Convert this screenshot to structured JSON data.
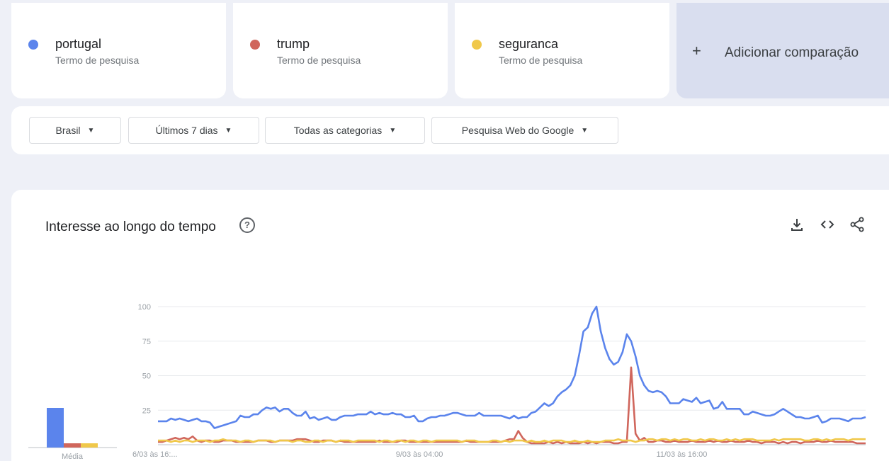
{
  "terms": [
    {
      "name": "portugal",
      "sub": "Termo de pesquisa",
      "color": "#5b84ec"
    },
    {
      "name": "trump",
      "sub": "Termo de pesquisa",
      "color": "#d0665c"
    },
    {
      "name": "seguranca",
      "sub": "Termo de pesquisa",
      "color": "#f0c84a"
    }
  ],
  "add_comparison": {
    "icon": "+",
    "label": "Adicionar comparação"
  },
  "filters": {
    "region": "Brasil",
    "period": "Últimos 7 dias",
    "category": "Todas as categorias",
    "search_type": "Pesquisa Web do Google"
  },
  "panel": {
    "title": "Interesse ao longo do tempo",
    "help_icon": "?",
    "download_icon": "download-icon",
    "embed_icon": "embed-icon",
    "share_icon": "share-icon"
  },
  "chart_data": {
    "type": "line",
    "yticks": [
      25,
      50,
      75,
      100
    ],
    "ylim": [
      0,
      100
    ],
    "x_labels": [
      "6/03 às 16:...",
      "9/03 às 04:00",
      "11/03 às 16:00"
    ],
    "x_label_indices": [
      0,
      60,
      120
    ],
    "average": {
      "label": "Média",
      "values": [
        28,
        3,
        3
      ]
    },
    "series": [
      {
        "name": "portugal",
        "color": "#5b84ec",
        "values": [
          17,
          17,
          17,
          19,
          18,
          19,
          18,
          17,
          18,
          19,
          17,
          17,
          16,
          12,
          13,
          14,
          15,
          16,
          17,
          21,
          20,
          20,
          22,
          22,
          25,
          27,
          26,
          27,
          24,
          26,
          26,
          23,
          21,
          21,
          24,
          19,
          20,
          18,
          19,
          20,
          18,
          18,
          20,
          21,
          21,
          21,
          22,
          22,
          22,
          24,
          22,
          23,
          22,
          22,
          23,
          22,
          22,
          20,
          20,
          21,
          17,
          17,
          19,
          20,
          20,
          21,
          21,
          22,
          23,
          23,
          22,
          21,
          21,
          21,
          23,
          21,
          21,
          21,
          21,
          21,
          20,
          19,
          21,
          19,
          20,
          20,
          23,
          24,
          27,
          30,
          28,
          30,
          35,
          38,
          40,
          43,
          50,
          65,
          82,
          85,
          95,
          100,
          82,
          70,
          62,
          58,
          60,
          67,
          80,
          75,
          64,
          50,
          43,
          39,
          38,
          39,
          38,
          35,
          30,
          30,
          30,
          33,
          32,
          31,
          34,
          30,
          31,
          32,
          26,
          27,
          31,
          26,
          26,
          26,
          26,
          22,
          22,
          24,
          23,
          22,
          21,
          21,
          22,
          24,
          26,
          24,
          22,
          20,
          20,
          19,
          19,
          20,
          21,
          16,
          17,
          19,
          19,
          19,
          18,
          17,
          19,
          19,
          19,
          20
        ]
      },
      {
        "name": "trump",
        "color": "#d0665c",
        "values": [
          2,
          2,
          3,
          4,
          5,
          4,
          5,
          4,
          6,
          3,
          2,
          3,
          3,
          2,
          2,
          3,
          3,
          3,
          2,
          2,
          2,
          2,
          2,
          3,
          3,
          3,
          2,
          2,
          3,
          3,
          3,
          3,
          4,
          4,
          4,
          3,
          2,
          2,
          3,
          3,
          3,
          2,
          3,
          2,
          2,
          2,
          2,
          2,
          2,
          2,
          2,
          3,
          2,
          2,
          2,
          2,
          3,
          3,
          2,
          2,
          2,
          2,
          2,
          2,
          2,
          2,
          2,
          2,
          2,
          2,
          2,
          3,
          2,
          2,
          2,
          2,
          2,
          2,
          2,
          2,
          3,
          4,
          4,
          10,
          5,
          2,
          1,
          1,
          1,
          1,
          2,
          1,
          2,
          1,
          2,
          1,
          1,
          1,
          2,
          1,
          2,
          1,
          2,
          2,
          2,
          1,
          1,
          2,
          2,
          56,
          8,
          3,
          5,
          2,
          2,
          3,
          3,
          2,
          2,
          3,
          2,
          2,
          2,
          3,
          2,
          2,
          2,
          3,
          2,
          3,
          2,
          2,
          3,
          2,
          2,
          2,
          3,
          2,
          2,
          1,
          2,
          2,
          2,
          1,
          2,
          1,
          2,
          2,
          1,
          2,
          2,
          2,
          3,
          2,
          2,
          3,
          2,
          2,
          2,
          2,
          2,
          1,
          1,
          1
        ]
      },
      {
        "name": "seguranca",
        "color": "#f0c84a",
        "values": [
          3,
          3,
          3,
          2,
          3,
          2,
          3,
          3,
          2,
          3,
          3,
          3,
          2,
          3,
          3,
          4,
          3,
          3,
          3,
          2,
          3,
          3,
          2,
          3,
          3,
          3,
          3,
          2,
          3,
          3,
          3,
          2,
          3,
          3,
          2,
          2,
          3,
          3,
          2,
          3,
          3,
          2,
          3,
          3,
          3,
          2,
          3,
          3,
          3,
          3,
          3,
          2,
          3,
          3,
          2,
          3,
          3,
          2,
          3,
          3,
          2,
          3,
          3,
          2,
          3,
          3,
          3,
          3,
          3,
          3,
          2,
          3,
          3,
          3,
          2,
          2,
          2,
          3,
          3,
          2,
          3,
          2,
          3,
          3,
          3,
          2,
          3,
          2,
          2,
          3,
          2,
          3,
          3,
          3,
          2,
          2,
          3,
          2,
          2,
          3,
          2,
          2,
          2,
          3,
          3,
          3,
          4,
          3,
          3,
          3,
          2,
          3,
          3,
          4,
          4,
          3,
          4,
          4,
          3,
          4,
          3,
          4,
          4,
          3,
          3,
          4,
          3,
          4,
          4,
          3,
          3,
          4,
          3,
          4,
          3,
          4,
          4,
          4,
          3,
          3,
          3,
          3,
          4,
          3,
          4,
          4,
          4,
          4,
          4,
          3,
          3,
          4,
          4,
          3,
          4,
          3,
          4,
          4,
          4,
          3,
          4,
          4,
          4,
          4
        ]
      }
    ]
  }
}
